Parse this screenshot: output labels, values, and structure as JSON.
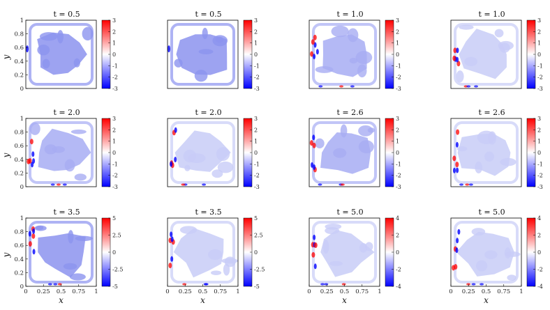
{
  "figure": {
    "xlabel": "x",
    "ylabel": "y",
    "x_ticks": [
      "0",
      "0.25",
      "0.5",
      "0.75",
      "1"
    ],
    "y_ticks": [
      "0",
      "0.2",
      "0.4",
      "0.6",
      "0.8",
      "1"
    ]
  },
  "colors": {
    "positive": "#ff0000",
    "negative": "#0000ff",
    "zero": "#ffffff",
    "frame": "#000000"
  },
  "chart_data": [
    {
      "type": "heatmap",
      "title_var": "t",
      "title": "t = 0.5",
      "colorbar_ticks": [
        "3",
        "2",
        "1",
        "0",
        "-1",
        "-2",
        "-3"
      ],
      "range": [
        -3,
        3
      ],
      "xlabel": "",
      "ylabel": "y"
    },
    {
      "type": "heatmap",
      "title_var": "t",
      "title": "t = 0.5",
      "colorbar_ticks": [
        "3",
        "2",
        "1",
        "0",
        "-1",
        "-2",
        "-3"
      ],
      "range": [
        -3,
        3
      ],
      "xlabel": "",
      "ylabel": ""
    },
    {
      "type": "heatmap",
      "title_var": "t",
      "title": "t = 1.0",
      "colorbar_ticks": [
        "3",
        "2",
        "1",
        "0",
        "-1",
        "-2",
        "-3"
      ],
      "range": [
        -3,
        3
      ],
      "xlabel": "",
      "ylabel": ""
    },
    {
      "type": "heatmap",
      "title_var": "t",
      "title": "t = 1.0",
      "colorbar_ticks": [
        "3",
        "2",
        "1",
        "0",
        "-1",
        "-2",
        "-3"
      ],
      "range": [
        -3,
        3
      ],
      "xlabel": "",
      "ylabel": ""
    },
    {
      "type": "heatmap",
      "title_var": "t",
      "title": "t = 2.0",
      "colorbar_ticks": [
        "3",
        "2",
        "1",
        "0",
        "-1",
        "-2",
        "-3"
      ],
      "range": [
        -3,
        3
      ],
      "xlabel": "",
      "ylabel": "y"
    },
    {
      "type": "heatmap",
      "title_var": "t",
      "title": "t = 2.0",
      "colorbar_ticks": [
        "3",
        "2",
        "1",
        "0",
        "-1",
        "-2",
        "-3"
      ],
      "range": [
        -3,
        3
      ],
      "xlabel": "",
      "ylabel": ""
    },
    {
      "type": "heatmap",
      "title_var": "t",
      "title": "t = 2.6",
      "colorbar_ticks": [
        "3",
        "2",
        "1",
        "0",
        "-1",
        "-2",
        "-3"
      ],
      "range": [
        -3,
        3
      ],
      "xlabel": "",
      "ylabel": ""
    },
    {
      "type": "heatmap",
      "title_var": "t",
      "title": "t = 2.6",
      "colorbar_ticks": [
        "3",
        "2",
        "1",
        "0",
        "-1",
        "-2",
        "-3"
      ],
      "range": [
        -3,
        3
      ],
      "xlabel": "",
      "ylabel": ""
    },
    {
      "type": "heatmap",
      "title_var": "t",
      "title": "t = 3.5",
      "colorbar_ticks": [
        "5",
        "2.5",
        "0",
        "-2.5",
        "-5"
      ],
      "range": [
        -5,
        5
      ],
      "xlabel": "x",
      "ylabel": "y"
    },
    {
      "type": "heatmap",
      "title_var": "t",
      "title": "t = 3.5",
      "colorbar_ticks": [
        "5",
        "2.5",
        "0",
        "-2.5",
        "-5"
      ],
      "range": [
        -5,
        5
      ],
      "xlabel": "x",
      "ylabel": ""
    },
    {
      "type": "heatmap",
      "title_var": "t",
      "title": "t = 5.0",
      "colorbar_ticks": [
        "4",
        "2",
        "0",
        "-2",
        "-4"
      ],
      "range": [
        -4,
        4
      ],
      "xlabel": "x",
      "ylabel": ""
    },
    {
      "type": "heatmap",
      "title_var": "t",
      "title": "t = 5.0",
      "colorbar_ticks": [
        "4",
        "2",
        "0",
        "-2",
        "-4"
      ],
      "range": [
        -4,
        4
      ],
      "xlabel": "x",
      "ylabel": ""
    }
  ]
}
